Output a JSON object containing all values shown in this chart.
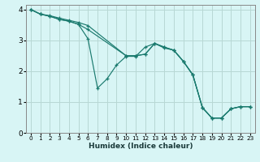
{
  "xlabel": "Humidex (Indice chaleur)",
  "bg_color": "#d8f5f5",
  "grid_color": "#b8d8d4",
  "line_color": "#1a7a6e",
  "xlim": [
    -0.5,
    23.5
  ],
  "ylim": [
    0,
    4.15
  ],
  "xticks": [
    0,
    1,
    2,
    3,
    4,
    5,
    6,
    7,
    8,
    9,
    10,
    11,
    12,
    13,
    14,
    15,
    16,
    17,
    18,
    19,
    20,
    21,
    22,
    23
  ],
  "yticks": [
    0,
    1,
    2,
    3,
    4
  ],
  "series": [
    {
      "x": [
        0,
        1,
        2,
        3,
        4,
        5,
        6,
        10,
        11,
        12,
        13,
        14,
        15,
        16,
        17,
        18,
        19,
        20,
        21,
        22,
        23
      ],
      "y": [
        4,
        3.85,
        3.8,
        3.72,
        3.65,
        3.58,
        3.48,
        2.5,
        2.5,
        2.55,
        2.9,
        2.78,
        2.68,
        2.32,
        1.88,
        0.82,
        0.48,
        0.48,
        0.78,
        0.85,
        0.85
      ]
    },
    {
      "x": [
        0,
        1,
        2,
        3,
        4,
        5,
        6,
        7,
        8,
        9,
        10,
        11,
        12,
        13,
        14,
        15,
        16,
        17,
        18,
        19,
        20,
        21,
        22,
        23
      ],
      "y": [
        4,
        3.85,
        3.78,
        3.68,
        3.62,
        3.52,
        3.05,
        1.45,
        1.75,
        2.2,
        2.48,
        2.48,
        2.78,
        2.9,
        2.75,
        2.68,
        2.32,
        1.88,
        0.82,
        0.48,
        0.48,
        0.78,
        0.85,
        0.85
      ]
    },
    {
      "x": [
        0,
        1,
        2,
        3,
        4,
        5,
        6,
        10,
        11,
        12,
        13,
        14,
        15,
        16,
        17,
        18,
        19,
        20,
        21,
        22,
        23
      ],
      "y": [
        4,
        3.85,
        3.78,
        3.68,
        3.62,
        3.52,
        3.35,
        2.5,
        2.5,
        2.55,
        2.9,
        2.78,
        2.68,
        2.32,
        1.88,
        0.82,
        0.48,
        0.48,
        0.78,
        0.85,
        0.85
      ]
    }
  ]
}
